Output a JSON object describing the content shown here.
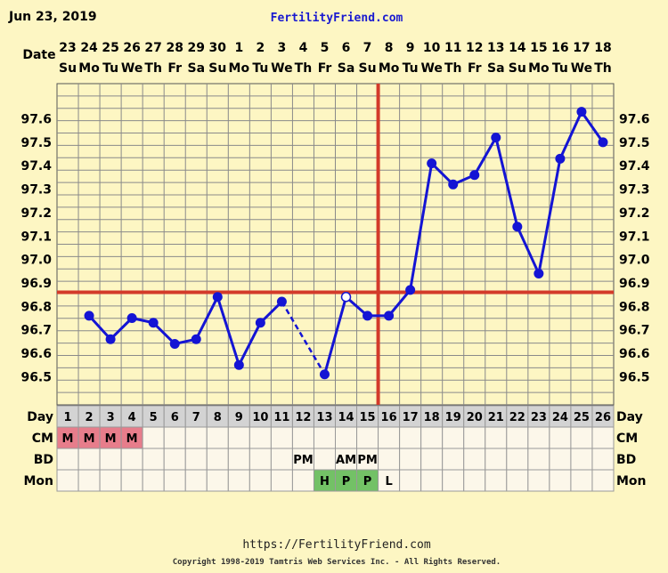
{
  "header": {
    "date": "Jun 23, 2019",
    "site": "FertilityFriend.com"
  },
  "labels": {
    "date_row": "Date",
    "day_row": "Day",
    "cm_row": "CM",
    "bd_row": "BD",
    "mon_row": "Mon"
  },
  "footer": {
    "url": "https://FertilityFriend.com",
    "copyright": "Copyright 1998-2019 Tamtris Web Services Inc. - All Rights Reserved."
  },
  "colors": {
    "background": "#fdf6c3",
    "plot_background": "#fdf6c3",
    "grid": "#8a8a8a",
    "temp_line": "#1414d4",
    "coverline": "#d33a2a",
    "ovulation_line": "#d33a2a",
    "cm_cell": "#e77d8b",
    "mon_cell": "#73c166",
    "day_row_bg": "#d3d3d3",
    "table_cell_bg": "#fcf7ea",
    "site_link": "#1a1ad0"
  },
  "chart_data": {
    "type": "line",
    "dates": [
      "23",
      "24",
      "25",
      "26",
      "27",
      "28",
      "29",
      "30",
      "1",
      "2",
      "3",
      "4",
      "5",
      "6",
      "7",
      "8",
      "9",
      "10",
      "11",
      "12",
      "13",
      "14",
      "15",
      "16",
      "17",
      "18"
    ],
    "weekdays": [
      "Su",
      "Mo",
      "Tu",
      "We",
      "Th",
      "Fr",
      "Sa",
      "Su",
      "Mo",
      "Tu",
      "We",
      "Th",
      "Fr",
      "Sa",
      "Su",
      "Mo",
      "Tu",
      "We",
      "Th",
      "Fr",
      "Sa",
      "Su",
      "Mo",
      "Tu",
      "We",
      "Th"
    ],
    "cycle_days": [
      "1",
      "2",
      "3",
      "4",
      "5",
      "6",
      "7",
      "8",
      "9",
      "10",
      "11",
      "12",
      "13",
      "14",
      "15",
      "16",
      "17",
      "18",
      "19",
      "20",
      "21",
      "22",
      "23",
      "24",
      "25",
      "26"
    ],
    "temperatures": [
      null,
      96.76,
      96.66,
      96.75,
      96.73,
      96.64,
      96.66,
      96.84,
      96.55,
      96.73,
      96.82,
      null,
      96.51,
      96.84,
      96.76,
      96.76,
      96.87,
      97.41,
      97.32,
      97.36,
      97.52,
      97.14,
      96.94,
      97.43,
      97.63,
      97.5
    ],
    "open_points": [
      13
    ],
    "dashed_segments": [
      [
        10,
        12
      ]
    ],
    "y_ticks": [
      "96.5",
      "96.6",
      "96.7",
      "96.8",
      "96.9",
      "97.0",
      "97.1",
      "97.2",
      "97.3",
      "97.4",
      "97.5",
      "97.6"
    ],
    "ylim": [
      96.38,
      97.75
    ],
    "coverline": 96.86,
    "ovulation_day": 16,
    "cm": [
      "M",
      "M",
      "M",
      "M",
      "",
      "",
      "",
      "",
      "",
      "",
      "",
      "",
      "",
      "",
      "",
      "",
      "",
      "",
      "",
      "",
      "",
      "",
      "",
      "",
      "",
      ""
    ],
    "bd": [
      "",
      "",
      "",
      "",
      "",
      "",
      "",
      "",
      "",
      "",
      "",
      "PM",
      "",
      "AM",
      "PM",
      "",
      "",
      "",
      "",
      "",
      "",
      "",
      "",
      "",
      "",
      ""
    ],
    "mon": [
      "",
      "",
      "",
      "",
      "",
      "",
      "",
      "",
      "",
      "",
      "",
      "",
      "H",
      "P",
      "P",
      "L",
      "",
      "",
      "",
      "",
      "",
      "",
      "",
      "",
      "",
      ""
    ],
    "grid": true
  }
}
